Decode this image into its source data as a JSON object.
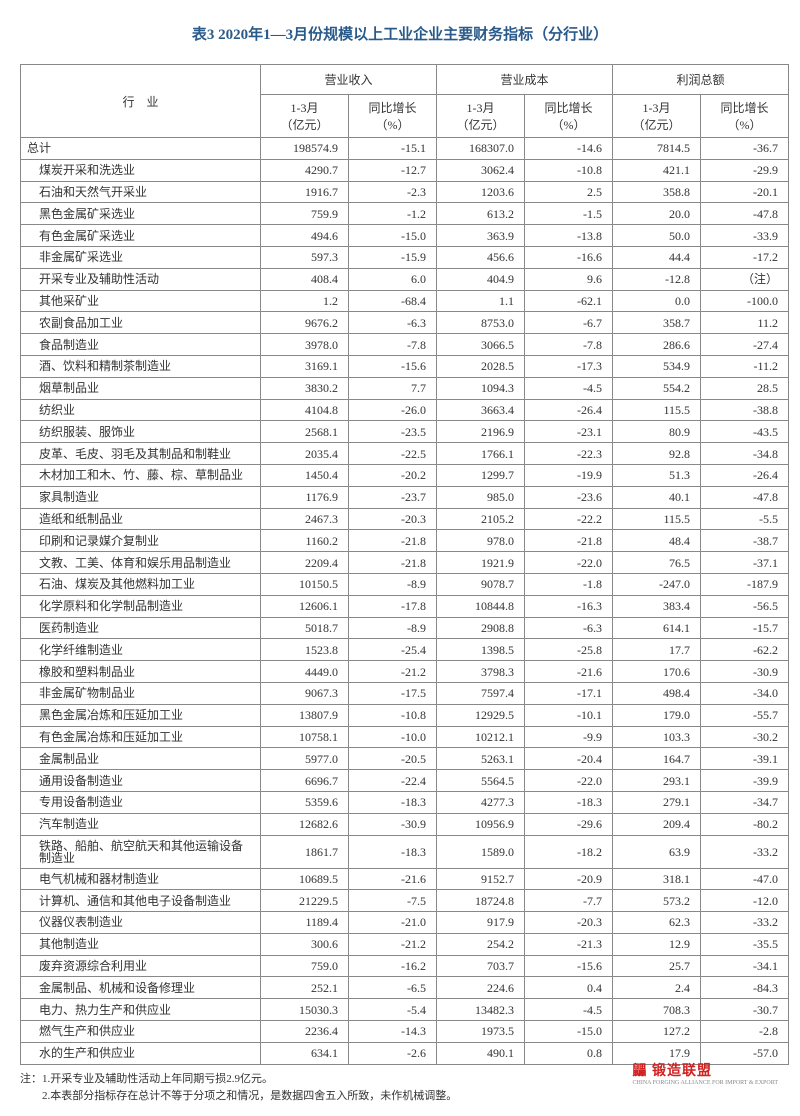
{
  "title": "表3  2020年1—3月份规模以上工业企业主要财务指标（分行业）",
  "header": {
    "industry": "行　业",
    "groups": [
      {
        "name": "营业收入",
        "val_label": "1-3月\n（亿元）",
        "growth_label": "同比增长\n（%）"
      },
      {
        "name": "营业成本",
        "val_label": "1-3月\n（亿元）",
        "growth_label": "同比增长\n（%）"
      },
      {
        "name": "利润总额",
        "val_label": "1-3月\n（亿元）",
        "growth_label": "同比增长\n（%）"
      }
    ]
  },
  "rows": [
    {
      "label": "总计",
      "indent": false,
      "v": [
        "198574.9",
        "-15.1",
        "168307.0",
        "-14.6",
        "7814.5",
        "-36.7"
      ]
    },
    {
      "label": "煤炭开采和洗选业",
      "indent": true,
      "v": [
        "4290.7",
        "-12.7",
        "3062.4",
        "-10.8",
        "421.1",
        "-29.9"
      ]
    },
    {
      "label": "石油和天然气开采业",
      "indent": true,
      "v": [
        "1916.7",
        "-2.3",
        "1203.6",
        "2.5",
        "358.8",
        "-20.1"
      ]
    },
    {
      "label": "黑色金属矿采选业",
      "indent": true,
      "v": [
        "759.9",
        "-1.2",
        "613.2",
        "-1.5",
        "20.0",
        "-47.8"
      ]
    },
    {
      "label": "有色金属矿采选业",
      "indent": true,
      "v": [
        "494.6",
        "-15.0",
        "363.9",
        "-13.8",
        "50.0",
        "-33.9"
      ]
    },
    {
      "label": "非金属矿采选业",
      "indent": true,
      "v": [
        "597.3",
        "-15.9",
        "456.6",
        "-16.6",
        "44.4",
        "-17.2"
      ]
    },
    {
      "label": "开采专业及辅助性活动",
      "indent": true,
      "v": [
        "408.4",
        "6.0",
        "404.9",
        "9.6",
        "-12.8",
        "（注）"
      ]
    },
    {
      "label": "其他采矿业",
      "indent": true,
      "v": [
        "1.2",
        "-68.4",
        "1.1",
        "-62.1",
        "0.0",
        "-100.0"
      ]
    },
    {
      "label": "农副食品加工业",
      "indent": true,
      "v": [
        "9676.2",
        "-6.3",
        "8753.0",
        "-6.7",
        "358.7",
        "11.2"
      ]
    },
    {
      "label": "食品制造业",
      "indent": true,
      "v": [
        "3978.0",
        "-7.8",
        "3066.5",
        "-7.8",
        "286.6",
        "-27.4"
      ]
    },
    {
      "label": "酒、饮料和精制茶制造业",
      "indent": true,
      "v": [
        "3169.1",
        "-15.6",
        "2028.5",
        "-17.3",
        "534.9",
        "-11.2"
      ]
    },
    {
      "label": "烟草制品业",
      "indent": true,
      "v": [
        "3830.2",
        "7.7",
        "1094.3",
        "-4.5",
        "554.2",
        "28.5"
      ]
    },
    {
      "label": "纺织业",
      "indent": true,
      "v": [
        "4104.8",
        "-26.0",
        "3663.4",
        "-26.4",
        "115.5",
        "-38.8"
      ]
    },
    {
      "label": "纺织服装、服饰业",
      "indent": true,
      "v": [
        "2568.1",
        "-23.5",
        "2196.9",
        "-23.1",
        "80.9",
        "-43.5"
      ]
    },
    {
      "label": "皮革、毛皮、羽毛及其制品和制鞋业",
      "indent": true,
      "v": [
        "2035.4",
        "-22.5",
        "1766.1",
        "-22.3",
        "92.8",
        "-34.8"
      ]
    },
    {
      "label": "木材加工和木、竹、藤、棕、草制品业",
      "indent": true,
      "v": [
        "1450.4",
        "-20.2",
        "1299.7",
        "-19.9",
        "51.3",
        "-26.4"
      ]
    },
    {
      "label": "家具制造业",
      "indent": true,
      "v": [
        "1176.9",
        "-23.7",
        "985.0",
        "-23.6",
        "40.1",
        "-47.8"
      ]
    },
    {
      "label": "造纸和纸制品业",
      "indent": true,
      "v": [
        "2467.3",
        "-20.3",
        "2105.2",
        "-22.2",
        "115.5",
        "-5.5"
      ]
    },
    {
      "label": "印刷和记录媒介复制业",
      "indent": true,
      "v": [
        "1160.2",
        "-21.8",
        "978.0",
        "-21.8",
        "48.4",
        "-38.7"
      ]
    },
    {
      "label": "文教、工美、体育和娱乐用品制造业",
      "indent": true,
      "v": [
        "2209.4",
        "-21.8",
        "1921.9",
        "-22.0",
        "76.5",
        "-37.1"
      ]
    },
    {
      "label": "石油、煤炭及其他燃料加工业",
      "indent": true,
      "v": [
        "10150.5",
        "-8.9",
        "9078.7",
        "-1.8",
        "-247.0",
        "-187.9"
      ]
    },
    {
      "label": "化学原料和化学制品制造业",
      "indent": true,
      "v": [
        "12606.1",
        "-17.8",
        "10844.8",
        "-16.3",
        "383.4",
        "-56.5"
      ]
    },
    {
      "label": "医药制造业",
      "indent": true,
      "v": [
        "5018.7",
        "-8.9",
        "2908.8",
        "-6.3",
        "614.1",
        "-15.7"
      ]
    },
    {
      "label": "化学纤维制造业",
      "indent": true,
      "v": [
        "1523.8",
        "-25.4",
        "1398.5",
        "-25.8",
        "17.7",
        "-62.2"
      ]
    },
    {
      "label": "橡胶和塑料制品业",
      "indent": true,
      "v": [
        "4449.0",
        "-21.2",
        "3798.3",
        "-21.6",
        "170.6",
        "-30.9"
      ]
    },
    {
      "label": "非金属矿物制品业",
      "indent": true,
      "v": [
        "9067.3",
        "-17.5",
        "7597.4",
        "-17.1",
        "498.4",
        "-34.0"
      ]
    },
    {
      "label": "黑色金属冶炼和压延加工业",
      "indent": true,
      "v": [
        "13807.9",
        "-10.8",
        "12929.5",
        "-10.1",
        "179.0",
        "-55.7"
      ]
    },
    {
      "label": "有色金属冶炼和压延加工业",
      "indent": true,
      "v": [
        "10758.1",
        "-10.0",
        "10212.1",
        "-9.9",
        "103.3",
        "-30.2"
      ]
    },
    {
      "label": "金属制品业",
      "indent": true,
      "v": [
        "5977.0",
        "-20.5",
        "5263.1",
        "-20.4",
        "164.7",
        "-39.1"
      ]
    },
    {
      "label": "通用设备制造业",
      "indent": true,
      "v": [
        "6696.7",
        "-22.4",
        "5564.5",
        "-22.0",
        "293.1",
        "-39.9"
      ]
    },
    {
      "label": "专用设备制造业",
      "indent": true,
      "v": [
        "5359.6",
        "-18.3",
        "4277.3",
        "-18.3",
        "279.1",
        "-34.7"
      ]
    },
    {
      "label": "汽车制造业",
      "indent": true,
      "v": [
        "12682.6",
        "-30.9",
        "10956.9",
        "-29.6",
        "209.4",
        "-80.2"
      ]
    },
    {
      "label": "铁路、船舶、航空航天和其他运输设备制造业",
      "indent": true,
      "v": [
        "1861.7",
        "-18.3",
        "1589.0",
        "-18.2",
        "63.9",
        "-33.2"
      ]
    },
    {
      "label": "电气机械和器材制造业",
      "indent": true,
      "v": [
        "10689.5",
        "-21.6",
        "9152.7",
        "-20.9",
        "318.1",
        "-47.0"
      ]
    },
    {
      "label": "计算机、通信和其他电子设备制造业",
      "indent": true,
      "v": [
        "21229.5",
        "-7.5",
        "18724.8",
        "-7.7",
        "573.2",
        "-12.0"
      ]
    },
    {
      "label": "仪器仪表制造业",
      "indent": true,
      "v": [
        "1189.4",
        "-21.0",
        "917.9",
        "-20.3",
        "62.3",
        "-33.2"
      ]
    },
    {
      "label": "其他制造业",
      "indent": true,
      "v": [
        "300.6",
        "-21.2",
        "254.2",
        "-21.3",
        "12.9",
        "-35.5"
      ]
    },
    {
      "label": "废弃资源综合利用业",
      "indent": true,
      "v": [
        "759.0",
        "-16.2",
        "703.7",
        "-15.6",
        "25.7",
        "-34.1"
      ]
    },
    {
      "label": "金属制品、机械和设备修理业",
      "indent": true,
      "v": [
        "252.1",
        "-6.5",
        "224.6",
        "0.4",
        "2.4",
        "-84.3"
      ]
    },
    {
      "label": "电力、热力生产和供应业",
      "indent": true,
      "v": [
        "15030.3",
        "-5.4",
        "13482.3",
        "-4.5",
        "708.3",
        "-30.7"
      ]
    },
    {
      "label": "燃气生产和供应业",
      "indent": true,
      "v": [
        "2236.4",
        "-14.3",
        "1973.5",
        "-15.0",
        "127.2",
        "-2.8"
      ]
    },
    {
      "label": "水的生产和供应业",
      "indent": true,
      "v": [
        "634.1",
        "-2.6",
        "490.1",
        "0.8",
        "17.9",
        "-57.0"
      ]
    }
  ],
  "footnotes": [
    "注：1.开采专业及辅助性活动上年同期亏损2.9亿元。",
    "　　2.本表部分指标存在总计不等于分项之和情况，是数据四舍五入所致，未作机械调整。"
  ],
  "watermark": {
    "main": "鼺 锻造联盟",
    "sub": "CHINA FORGING ALLIANCE FOR IMPORT & EXPORT"
  }
}
